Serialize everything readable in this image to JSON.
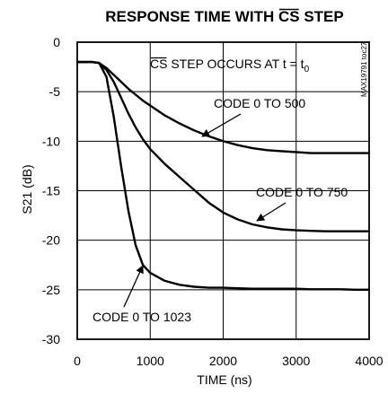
{
  "chart_data": {
    "type": "line",
    "title_overline": "CS",
    "title_prefix": "RESPONSE TIME WITH ",
    "title_suffix": " STEP",
    "xlabel": "TIME (ns)",
    "ylabel": "S21 (dB)",
    "xlim": [
      0,
      4000
    ],
    "ylim": [
      -30,
      0
    ],
    "x_ticks": [
      "0",
      "1000",
      "2000",
      "3000",
      "4000"
    ],
    "y_ticks": [
      "0",
      "-5",
      "-10",
      "-15",
      "-20",
      "-25",
      "-30"
    ],
    "grid": true,
    "part_number": "MAX19791 toc27",
    "annotation": {
      "overline": "CS",
      "text": " STEP OCCURS AT t = t",
      "subscript": "0"
    },
    "series": [
      {
        "name": "CODE 0 TO 500",
        "x": [
          0,
          200,
          300,
          400,
          500,
          600,
          700,
          800,
          900,
          1000,
          1200,
          1400,
          1600,
          1800,
          2000,
          2200,
          2400,
          2600,
          2800,
          3000,
          3200,
          3400,
          3600,
          3800,
          4000
        ],
        "y": [
          -2.0,
          -2.0,
          -2.1,
          -2.6,
          -3.3,
          -4.0,
          -4.7,
          -5.3,
          -5.9,
          -6.4,
          -7.4,
          -8.2,
          -8.9,
          -9.5,
          -10.0,
          -10.4,
          -10.7,
          -10.9,
          -11.0,
          -11.1,
          -11.2,
          -11.2,
          -11.2,
          -11.2,
          -11.2
        ]
      },
      {
        "name": "CODE 0 TO 750",
        "x": [
          0,
          200,
          300,
          400,
          500,
          600,
          700,
          800,
          900,
          1000,
          1200,
          1400,
          1600,
          1800,
          2000,
          2200,
          2400,
          2600,
          2800,
          3000,
          3200,
          3400,
          3600,
          3800,
          4000
        ],
        "y": [
          -2.0,
          -2.0,
          -2.1,
          -2.8,
          -4.0,
          -5.6,
          -7.2,
          -8.6,
          -9.8,
          -10.8,
          -12.3,
          -13.6,
          -14.9,
          -16.2,
          -17.2,
          -17.9,
          -18.4,
          -18.7,
          -18.9,
          -19.0,
          -19.05,
          -19.1,
          -19.1,
          -19.1,
          -19.1
        ]
      },
      {
        "name": "CODE 0 TO 1023",
        "x": [
          0,
          200,
          300,
          400,
          500,
          600,
          700,
          800,
          900,
          1000,
          1200,
          1400,
          1600,
          1800,
          2000,
          2200,
          2400,
          2600,
          2800,
          3000,
          3200,
          3400,
          3600,
          3800,
          4000
        ],
        "y": [
          -2.0,
          -2.0,
          -2.1,
          -3.5,
          -7.5,
          -12.5,
          -17.0,
          -20.5,
          -22.5,
          -23.3,
          -24.1,
          -24.5,
          -24.7,
          -24.8,
          -24.8,
          -24.85,
          -24.9,
          -24.9,
          -24.9,
          -24.9,
          -24.95,
          -24.95,
          -24.95,
          -25.0,
          -25.0
        ]
      }
    ]
  }
}
